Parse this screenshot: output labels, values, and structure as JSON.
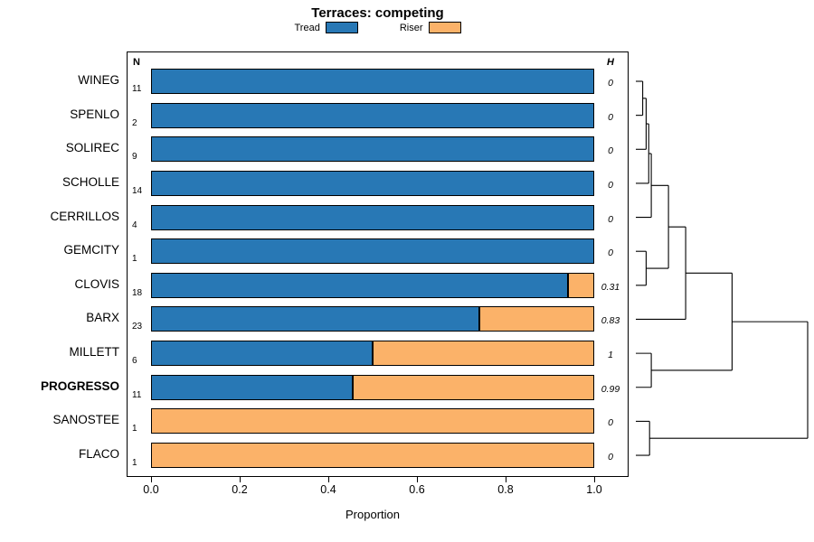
{
  "chart_data": {
    "type": "bar",
    "title": "Terraces: competing",
    "xlabel": "Proportion",
    "n_header": "N",
    "h_header": "H",
    "xlim": [
      0,
      1
    ],
    "x_ticks": [
      "0.0",
      "0.2",
      "0.4",
      "0.6",
      "0.8",
      "1.0"
    ],
    "x_tick_values": [
      0,
      0.2,
      0.4,
      0.6,
      0.8,
      1.0
    ],
    "legend_position": "top",
    "grid": false,
    "series": [
      {
        "name": "Tread",
        "color": "#2878b5"
      },
      {
        "name": "Riser",
        "color": "#fbb269"
      }
    ],
    "rows": [
      {
        "label": "WINEG",
        "n": 11,
        "tread": 1.0,
        "riser": 0.0,
        "h": "0",
        "bold": false
      },
      {
        "label": "SPENLO",
        "n": 2,
        "tread": 1.0,
        "riser": 0.0,
        "h": "0",
        "bold": false
      },
      {
        "label": "SOLIREC",
        "n": 9,
        "tread": 1.0,
        "riser": 0.0,
        "h": "0",
        "bold": false
      },
      {
        "label": "SCHOLLE",
        "n": 14,
        "tread": 1.0,
        "riser": 0.0,
        "h": "0",
        "bold": false
      },
      {
        "label": "CERRILLOS",
        "n": 4,
        "tread": 1.0,
        "riser": 0.0,
        "h": "0",
        "bold": false
      },
      {
        "label": "GEMCITY",
        "n": 1,
        "tread": 1.0,
        "riser": 0.0,
        "h": "0",
        "bold": false
      },
      {
        "label": "CLOVIS",
        "n": 18,
        "tread": 0.94,
        "riser": 0.06,
        "h": "0.31",
        "bold": false
      },
      {
        "label": "BARX",
        "n": 23,
        "tread": 0.74,
        "riser": 0.26,
        "h": "0.83",
        "bold": false
      },
      {
        "label": "MILLETT",
        "n": 6,
        "tread": 0.5,
        "riser": 0.5,
        "h": "1",
        "bold": false
      },
      {
        "label": "PROGRESSO",
        "n": 11,
        "tread": 0.455,
        "riser": 0.545,
        "h": "0.99",
        "bold": true
      },
      {
        "label": "SANOSTEE",
        "n": 1,
        "tread": 0.0,
        "riser": 1.0,
        "h": "0",
        "bold": false
      },
      {
        "label": "FLACO",
        "n": 1,
        "tread": 0.0,
        "riser": 1.0,
        "h": "0",
        "bold": false
      }
    ],
    "dendrogram": {
      "height": 1.0,
      "children": [
        {
          "height": 0.56,
          "children": [
            {
              "height": 0.29,
              "children": [
                {
                  "height": 0.19,
                  "children": [
                    {
                      "height": 0.09,
                      "children": [
                        {
                          "height": 0.075,
                          "children": [
                            {
                              "height": 0.06,
                              "children": [
                                {
                                  "height": 0.04,
                                  "children": [
                                    {
                                      "leaf": "WINEG"
                                    },
                                    {
                                      "leaf": "SPENLO"
                                    }
                                  ]
                                },
                                {
                                  "leaf": "SOLIREC"
                                }
                              ]
                            },
                            {
                              "leaf": "SCHOLLE"
                            }
                          ]
                        },
                        {
                          "leaf": "CERRILLOS"
                        }
                      ]
                    },
                    {
                      "height": 0.06,
                      "children": [
                        {
                          "leaf": "GEMCITY"
                        },
                        {
                          "leaf": "CLOVIS"
                        }
                      ]
                    }
                  ]
                },
                {
                  "leaf": "BARX"
                }
              ]
            },
            {
              "height": 0.09,
              "children": [
                {
                  "leaf": "MILLETT"
                },
                {
                  "leaf": "PROGRESSO"
                }
              ]
            }
          ]
        },
        {
          "height": 0.08,
          "children": [
            {
              "leaf": "SANOSTEE"
            },
            {
              "leaf": "FLACO"
            }
          ]
        }
      ]
    }
  }
}
